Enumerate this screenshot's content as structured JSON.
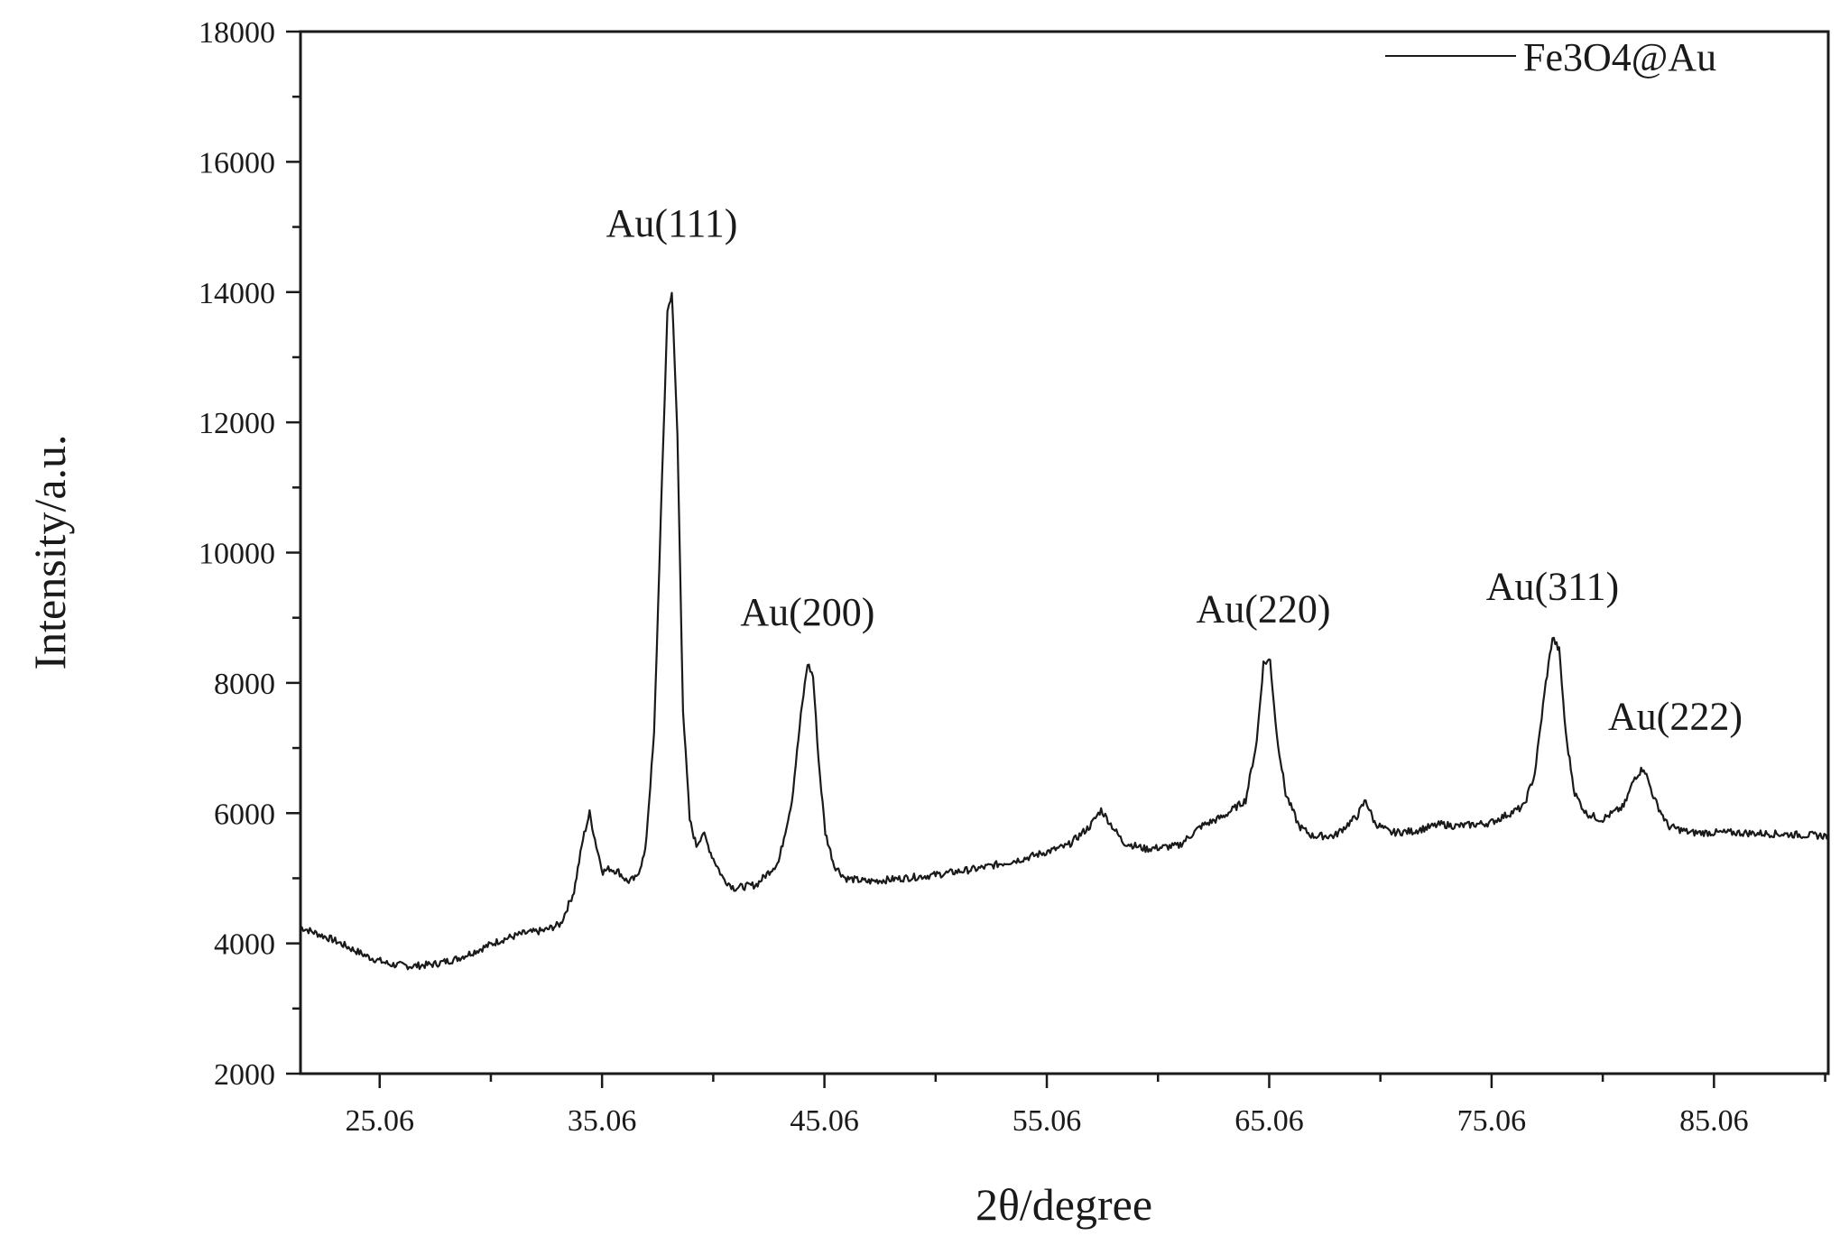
{
  "chart_data": {
    "type": "line",
    "title": "",
    "xlabel": "2θ/degree",
    "ylabel": "Intensity/a.u.",
    "xlim": [
      21.5,
      90.2
    ],
    "ylim": [
      2000,
      18000
    ],
    "xticks": [
      25.06,
      35.06,
      45.06,
      55.06,
      65.06,
      75.06,
      85.06
    ],
    "xtick_labels": [
      "25.06",
      "35.06",
      "45.06",
      "55.06",
      "65.06",
      "75.06",
      "85.06"
    ],
    "yticks": [
      2000,
      4000,
      6000,
      8000,
      10000,
      12000,
      14000,
      16000,
      18000
    ],
    "ytick_labels": [
      "2000",
      "4000",
      "6000",
      "8000",
      "10000",
      "12000",
      "14000",
      "16000",
      "18000"
    ],
    "grid": false,
    "legend": {
      "position": "top-right",
      "entries": [
        "Fe3O4@Au"
      ]
    },
    "series": [
      {
        "name": "Fe3O4@Au",
        "color": "#1a1a1a",
        "x": [
          21.5,
          23.0,
          24.5,
          25.5,
          26.5,
          27.5,
          28.5,
          29.5,
          30.5,
          31.5,
          32.5,
          33.2,
          33.8,
          34.2,
          34.5,
          34.8,
          35.1,
          35.4,
          35.8,
          36.2,
          36.6,
          37.0,
          37.4,
          37.7,
          38.0,
          38.2,
          38.45,
          38.7,
          39.0,
          39.3,
          39.6,
          40.0,
          40.5,
          41.0,
          42.0,
          43.0,
          43.6,
          44.0,
          44.3,
          44.55,
          44.8,
          45.1,
          45.5,
          46.0,
          47.0,
          48.0,
          50.0,
          52.0,
          54.0,
          56.0,
          57.0,
          57.5,
          58.0,
          58.5,
          59.5,
          61.0,
          62.0,
          63.0,
          64.0,
          64.5,
          64.8,
          65.1,
          65.4,
          65.8,
          66.4,
          67.0,
          68.0,
          69.0,
          69.4,
          69.8,
          70.5,
          71.5,
          72.8,
          73.5,
          75.0,
          76.5,
          77.0,
          77.5,
          77.8,
          78.1,
          78.4,
          78.8,
          79.3,
          80.0,
          81.0,
          81.5,
          81.9,
          82.4,
          83.0,
          84.0,
          86.0,
          88.0,
          90.2
        ],
        "y": [
          4250,
          4050,
          3800,
          3680,
          3650,
          3680,
          3760,
          3900,
          4050,
          4150,
          4200,
          4300,
          4800,
          5600,
          6000,
          5500,
          5100,
          5150,
          5100,
          4950,
          5000,
          5400,
          7200,
          10500,
          13700,
          14000,
          11800,
          7600,
          5900,
          5500,
          5700,
          5350,
          5000,
          4850,
          4900,
          5250,
          6200,
          7500,
          8300,
          8100,
          6800,
          5700,
          5200,
          5000,
          4950,
          4980,
          5050,
          5150,
          5300,
          5500,
          5800,
          6050,
          5800,
          5550,
          5450,
          5500,
          5800,
          5950,
          6200,
          7100,
          8300,
          8350,
          7200,
          6300,
          5800,
          5650,
          5650,
          5950,
          6200,
          5850,
          5700,
          5720,
          5830,
          5800,
          5850,
          6100,
          6600,
          8000,
          8700,
          8500,
          7200,
          6300,
          6000,
          5900,
          6100,
          6550,
          6700,
          6200,
          5800,
          5700,
          5700,
          5680,
          5650
        ]
      }
    ],
    "annotations": [
      {
        "text": "Au(111)",
        "x": 38.2,
        "y": 14000
      },
      {
        "text": "Au(200)",
        "x": 44.3,
        "y": 8300
      },
      {
        "text": "Au(220)",
        "x": 64.8,
        "y": 8350
      },
      {
        "text": "Au(311)",
        "x": 77.8,
        "y": 8700
      },
      {
        "text": "Au(222)",
        "x": 81.9,
        "y": 6700
      }
    ]
  }
}
